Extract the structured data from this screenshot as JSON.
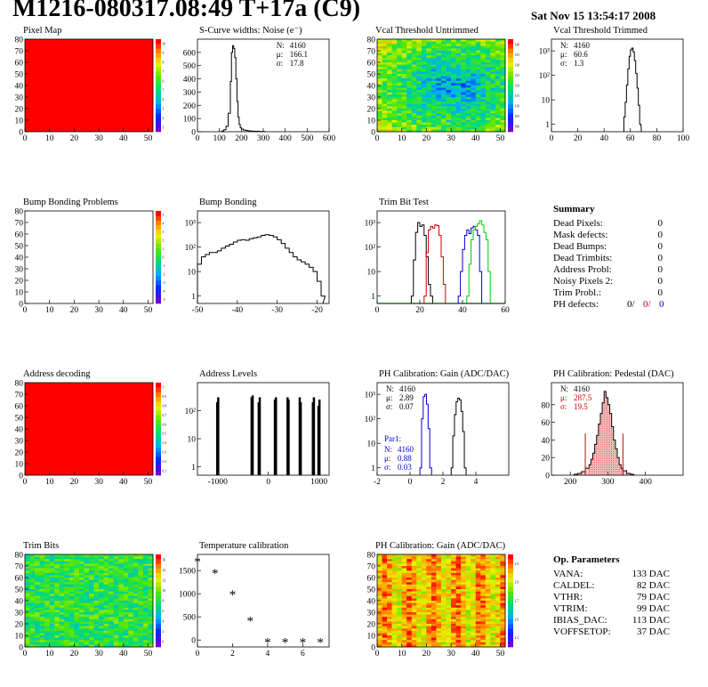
{
  "header": {
    "title": "M1216-080317.08:49 T+17a (C9)",
    "date": "Sat Nov 15 13:54:17 2008"
  },
  "summary": {
    "title": "Summary",
    "items": [
      {
        "label": "Dead Pixels:",
        "value": "0"
      },
      {
        "label": "Mask defects:",
        "value": "0"
      },
      {
        "label": "Dead Bumps:",
        "value": "0"
      },
      {
        "label": "Dead Trimbits:",
        "value": "0"
      },
      {
        "label": "Address Probl:",
        "value": "0"
      },
      {
        "label": "Noisy Pixels 2:",
        "value": "0"
      },
      {
        "label": "Trim Probl.:",
        "value": "0"
      }
    ],
    "ph_defects": {
      "label": "PH defects:",
      "values": [
        "0/",
        "0/",
        "0"
      ],
      "colors": [
        "#000000",
        "#cc0000",
        "#0000cc"
      ]
    }
  },
  "op_parameters": {
    "title": "Op. Parameters",
    "items": [
      {
        "label": "VANA:",
        "value": "133 DAC"
      },
      {
        "label": "CALDEL:",
        "value": "82 DAC"
      },
      {
        "label": "VTHR:",
        "value": "79 DAC"
      },
      {
        "label": "VTRIM:",
        "value": "99 DAC"
      },
      {
        "label": "IBIAS_DAC:",
        "value": "113 DAC"
      },
      {
        "label": "VOFFSETOP:",
        "value": "37 DAC"
      }
    ]
  },
  "chart_data": [
    {
      "id": "pixel-map",
      "type": "heatmap",
      "title": "Pixel Map",
      "x_ticks": [
        "0",
        "10",
        "20",
        "30",
        "40",
        "50"
      ],
      "y_ticks": [
        "0",
        "10",
        "20",
        "30",
        "40",
        "50",
        "60",
        "70",
        "80"
      ],
      "xlim": [
        0,
        52
      ],
      "ylim": [
        0,
        80
      ],
      "fill": "uniform",
      "fill_color": "#ff0000",
      "palette_ticks": [
        "1",
        "2",
        "3",
        "4",
        "5",
        "6",
        "7",
        "8",
        "9",
        "10"
      ]
    },
    {
      "id": "scurve-widths",
      "type": "bar",
      "title": "S-Curve widths: Noise (e⁻)",
      "x_ticks": [
        "0",
        "100",
        "200",
        "300",
        "400",
        "500",
        "600"
      ],
      "y_ticks": [
        "0",
        "100",
        "200",
        "300",
        "400",
        "500",
        "600"
      ],
      "xlim": [
        0,
        600
      ],
      "ylim": [
        0,
        700
      ],
      "log_y": false,
      "x": [
        110,
        120,
        130,
        140,
        150,
        155,
        160,
        165,
        170,
        175,
        180,
        185,
        190,
        195,
        200,
        210,
        220,
        230,
        240,
        250,
        260,
        270,
        280,
        290,
        300
      ],
      "values": [
        5,
        15,
        40,
        140,
        380,
        600,
        650,
        630,
        560,
        400,
        230,
        110,
        55,
        30,
        20,
        12,
        9,
        7,
        5,
        4,
        3,
        3,
        2,
        2,
        1
      ],
      "stats": [
        {
          "label": "N:",
          "value": "4160"
        },
        {
          "label": "μ:",
          "value": "166.1"
        },
        {
          "label": "σ:",
          "value": "17.8"
        }
      ]
    },
    {
      "id": "vcal-untrimmed",
      "type": "heatmap",
      "title": "Vcal Threshold Untrimmed",
      "x_ticks": [
        "0",
        "10",
        "20",
        "30",
        "40",
        "50"
      ],
      "y_ticks": [
        "0",
        "10",
        "20",
        "30",
        "40",
        "50",
        "60",
        "70",
        "80"
      ],
      "xlim": [
        0,
        52
      ],
      "ylim": [
        0,
        80
      ],
      "fill": "noise-bluecenter",
      "palette_ticks": [
        "100",
        "105",
        "110",
        "115",
        "120",
        "125",
        "130",
        "135",
        "140"
      ]
    },
    {
      "id": "vcal-trimmed",
      "type": "bar",
      "title": "Vcal Threshold Trimmed",
      "x_ticks": [
        "0",
        "20",
        "40",
        "60",
        "80",
        "100"
      ],
      "y_ticks": [
        "1",
        "10",
        "10²",
        "10³"
      ],
      "xlim": [
        0,
        100
      ],
      "ylim": [
        0.5,
        3000
      ],
      "log_y": true,
      "x": [
        55,
        56,
        57,
        58,
        59,
        60,
        61,
        62,
        63,
        64,
        65,
        66,
        67
      ],
      "values": [
        2,
        8,
        40,
        180,
        600,
        1100,
        1300,
        900,
        400,
        120,
        30,
        6,
        1
      ],
      "stats": [
        {
          "label": "N:",
          "value": "4160"
        },
        {
          "label": "μ:",
          "value": "60.6"
        },
        {
          "label": "σ:",
          "value": "1.3"
        }
      ]
    },
    {
      "id": "bump-bonding-problems",
      "type": "heatmap",
      "title": "Bump Bonding Problems",
      "x_ticks": [
        "0",
        "10",
        "20",
        "30",
        "40",
        "50"
      ],
      "y_ticks": [
        "0",
        "10",
        "20",
        "30",
        "40",
        "50",
        "60",
        "70",
        "80"
      ],
      "xlim": [
        0,
        52
      ],
      "ylim": [
        0,
        80
      ],
      "fill": "empty",
      "palette_ticks": [
        "-5",
        "-4",
        "-3",
        "-2",
        "-1",
        "0",
        "1",
        "2",
        "3",
        "4",
        "5"
      ]
    },
    {
      "id": "bump-bonding",
      "type": "bar",
      "title": "Bump Bonding",
      "x_ticks": [
        "-50",
        "-40",
        "-30",
        "-20"
      ],
      "y_ticks": [
        "1",
        "10",
        "10²",
        "10³"
      ],
      "xlim": [
        -50,
        -17
      ],
      "ylim": [
        0.5,
        3000
      ],
      "log_y": true,
      "x": [
        -50,
        -49,
        -48,
        -47,
        -46,
        -45,
        -44,
        -43,
        -42,
        -41,
        -40,
        -39,
        -38,
        -37,
        -36,
        -35,
        -34,
        -33,
        -32,
        -31,
        -30,
        -29,
        -28,
        -27,
        -26,
        -25,
        -24,
        -23,
        -22,
        -21,
        -20,
        -19
      ],
      "values": [
        20,
        40,
        50,
        60,
        60,
        70,
        90,
        110,
        130,
        160,
        190,
        200,
        190,
        220,
        240,
        260,
        300,
        320,
        300,
        260,
        200,
        140,
        90,
        60,
        40,
        30,
        25,
        20,
        15,
        10,
        4,
        1
      ]
    },
    {
      "id": "trim-bit-test",
      "type": "line",
      "title": "Trim Bit Test",
      "x_ticks": [
        "0",
        "20",
        "40",
        "60"
      ],
      "y_ticks": [
        "1",
        "10",
        "10²",
        "10³"
      ],
      "xlim": [
        0,
        60
      ],
      "ylim": [
        0.5,
        3000
      ],
      "log_y": true,
      "series": [
        {
          "color": "#000000",
          "x": [
            16,
            17,
            18,
            19,
            20,
            21,
            22,
            23,
            24,
            25,
            26
          ],
          "values": [
            1,
            30,
            400,
            1000,
            700,
            800,
            300,
            40,
            3,
            1,
            0.5
          ]
        },
        {
          "color": "#cc0000",
          "x": [
            22,
            23,
            24,
            25,
            26,
            27,
            28,
            29,
            30,
            31,
            32
          ],
          "values": [
            1,
            60,
            500,
            700,
            600,
            800,
            750,
            300,
            40,
            3,
            0.5
          ]
        },
        {
          "color": "#0000cc",
          "x": [
            38,
            39,
            40,
            41,
            42,
            43,
            44,
            45,
            46,
            47,
            48,
            49
          ],
          "values": [
            1,
            10,
            80,
            300,
            500,
            350,
            600,
            700,
            500,
            300,
            10,
            0.5
          ]
        },
        {
          "color": "#00cc00",
          "x": [
            42,
            43,
            44,
            45,
            46,
            47,
            48,
            49,
            50,
            51,
            52,
            53
          ],
          "values": [
            1,
            20,
            200,
            500,
            700,
            900,
            1200,
            800,
            400,
            200,
            10,
            0.5
          ]
        }
      ]
    },
    {
      "id": "address-decoding",
      "type": "heatmap",
      "title": "Address decoding",
      "x_ticks": [
        "0",
        "10",
        "20",
        "30",
        "40",
        "50"
      ],
      "y_ticks": [
        "0",
        "10",
        "20",
        "30",
        "40",
        "50",
        "60",
        "70",
        "80"
      ],
      "xlim": [
        0,
        52
      ],
      "ylim": [
        0,
        80
      ],
      "fill": "uniform",
      "fill_color": "#ff0000",
      "palette_ticks": [
        "0.1",
        "0.2",
        "0.3",
        "0.4",
        "0.5",
        "0.6",
        "0.7",
        "0.8",
        "0.9",
        "1"
      ]
    },
    {
      "id": "address-levels",
      "type": "bar",
      "title": "Address Levels",
      "x_ticks": [
        "-1000",
        "0",
        "1000"
      ],
      "y_ticks": [
        "1",
        "10",
        "10²"
      ],
      "xlim": [
        -1400,
        1200
      ],
      "ylim": [
        0.5,
        1000
      ],
      "log_y": true,
      "x": [
        -1010,
        -990,
        -330,
        -310,
        -190,
        -170,
        130,
        150,
        380,
        400,
        620,
        640,
        880,
        900,
        990,
        1010
      ],
      "values": [
        200,
        300,
        300,
        350,
        200,
        300,
        250,
        300,
        300,
        250,
        300,
        200,
        200,
        300,
        150,
        250
      ]
    },
    {
      "id": "ph-gain",
      "type": "line",
      "title": "PH Calibration: Gain (ADC/DAC)",
      "x_ticks": [
        "-2",
        "0",
        "2",
        "4"
      ],
      "y_ticks": [
        "1",
        "10",
        "10²",
        "10³"
      ],
      "xlim": [
        -2,
        6
      ],
      "ylim": [
        0.5,
        3000
      ],
      "log_y": true,
      "series": [
        {
          "color": "#000000",
          "x": [
            2.5,
            2.6,
            2.7,
            2.8,
            2.9,
            3.0,
            3.1,
            3.2,
            3.3
          ],
          "values": [
            1,
            20,
            150,
            500,
            700,
            600,
            200,
            30,
            1
          ]
        },
        {
          "color": "#0000cc",
          "x": [
            0.6,
            0.7,
            0.8,
            0.9,
            1.0,
            1.1,
            1.2
          ],
          "values": [
            1,
            100,
            800,
            1000,
            400,
            40,
            1
          ]
        }
      ],
      "stats": [
        {
          "label": "N:",
          "value": "4160"
        },
        {
          "label": "μ:",
          "value": "2.89"
        },
        {
          "label": "σ:",
          "value": "0.07"
        }
      ],
      "stats2_title": "Par1:",
      "stats2": [
        {
          "label": "N:",
          "value": "4160"
        },
        {
          "label": "μ:",
          "value": "0.88"
        },
        {
          "label": "σ:",
          "value": "0.03"
        }
      ]
    },
    {
      "id": "ph-pedestal",
      "type": "bar",
      "title": "PH Calibration: Pedestal (DAC)",
      "x_ticks": [
        "200",
        "300",
        "400"
      ],
      "y_ticks": [
        "0",
        "20",
        "40",
        "60",
        "80"
      ],
      "xlim": [
        150,
        500
      ],
      "ylim": [
        0,
        105
      ],
      "log_y": false,
      "x": [
        210,
        220,
        230,
        240,
        250,
        255,
        260,
        265,
        270,
        275,
        280,
        285,
        290,
        295,
        300,
        305,
        310,
        315,
        320,
        325,
        330,
        335,
        340,
        350,
        360
      ],
      "values": [
        1,
        2,
        4,
        8,
        12,
        18,
        25,
        35,
        45,
        58,
        70,
        82,
        95,
        88,
        80,
        70,
        55,
        40,
        30,
        20,
        12,
        8,
        5,
        2,
        1
      ],
      "stats": [
        {
          "label": "N:",
          "value": "4160"
        },
        {
          "label": "μ:",
          "value": "287.5"
        },
        {
          "label": "σ:",
          "value": "19.5"
        }
      ]
    },
    {
      "id": "trim-bits",
      "type": "heatmap",
      "title": "Trim Bits",
      "x_ticks": [
        "0",
        "10",
        "20",
        "30",
        "40",
        "50"
      ],
      "y_ticks": [
        "0",
        "10",
        "20",
        "30",
        "40",
        "50",
        "60",
        "70",
        "80"
      ],
      "xlim": [
        0,
        52
      ],
      "ylim": [
        0,
        80
      ],
      "fill": "noise-green",
      "palette_ticks": [
        "0",
        "2",
        "4",
        "6",
        "8",
        "10",
        "12",
        "14",
        "16"
      ]
    },
    {
      "id": "temperature-calibration",
      "type": "scatter",
      "title": "Temperature calibration",
      "x_ticks": [
        "0",
        "2",
        "4",
        "6"
      ],
      "y_ticks": [
        "0",
        "500",
        "1000",
        "1500"
      ],
      "xlim": [
        0,
        7.5
      ],
      "ylim": [
        -150,
        1850
      ],
      "log_y": false,
      "x": [
        0,
        1,
        2,
        3,
        4,
        5,
        6,
        7
      ],
      "values": [
        1700,
        1450,
        980,
        420,
        -40,
        -40,
        -40,
        -40
      ]
    },
    {
      "id": "ph-gain-map",
      "type": "heatmap",
      "title": "PH Calibration: Gain (ADC/DAC)",
      "x_ticks": [
        "0",
        "10",
        "20",
        "30",
        "40",
        "50"
      ],
      "y_ticks": [
        "0",
        "10",
        "20",
        "30",
        "40",
        "50",
        "60",
        "70",
        "80"
      ],
      "xlim": [
        0,
        52
      ],
      "ylim": [
        0,
        80
      ],
      "fill": "noise-orange",
      "palette_ticks": [
        "2.5",
        "2.6",
        "2.7",
        "2.8",
        "2.9"
      ]
    }
  ]
}
